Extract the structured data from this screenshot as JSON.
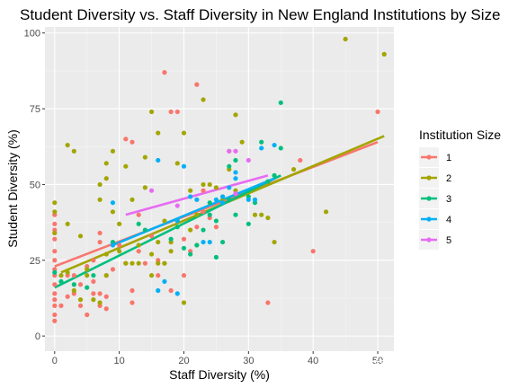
{
  "chart_data": {
    "type": "scatter",
    "title": "Student Diversity vs. Staff Diversity in New England Institutions by Size",
    "xlabel": "Staff Diversity (%)",
    "ylabel": "Student Diversity (%)",
    "xlim": [
      -1.5,
      52.5
    ],
    "ylim": [
      -5,
      102
    ],
    "x_ticks": [
      0,
      10,
      20,
      30,
      40,
      50
    ],
    "y_ticks": [
      0,
      25,
      50,
      75,
      100
    ],
    "grid": true,
    "legend": {
      "title": "Institution Size",
      "position": "right"
    },
    "series": [
      {
        "name": "1",
        "color": "#F8766D",
        "points": [
          [
            0,
            5
          ],
          [
            0,
            7
          ],
          [
            0,
            10
          ],
          [
            0,
            12
          ],
          [
            0,
            14
          ],
          [
            0,
            17
          ],
          [
            0,
            20
          ],
          [
            0,
            22
          ],
          [
            0,
            25
          ],
          [
            0,
            28
          ],
          [
            0,
            32
          ],
          [
            0,
            34
          ],
          [
            0,
            35
          ],
          [
            0,
            37
          ],
          [
            0,
            40
          ],
          [
            1,
            10
          ],
          [
            2,
            13
          ],
          [
            2,
            20
          ],
          [
            3,
            14
          ],
          [
            3,
            20
          ],
          [
            4,
            10
          ],
          [
            4,
            17
          ],
          [
            5,
            7
          ],
          [
            5,
            23
          ],
          [
            6,
            14
          ],
          [
            6,
            18
          ],
          [
            6,
            25
          ],
          [
            7,
            10
          ],
          [
            7,
            14
          ],
          [
            7,
            31
          ],
          [
            7,
            34
          ],
          [
            8,
            9
          ],
          [
            8,
            13
          ],
          [
            8,
            20
          ],
          [
            9,
            22
          ],
          [
            10,
            30
          ],
          [
            11,
            24
          ],
          [
            11,
            65
          ],
          [
            12,
            11
          ],
          [
            12,
            15
          ],
          [
            12,
            64
          ],
          [
            13,
            28
          ],
          [
            13,
            40
          ],
          [
            14,
            24
          ],
          [
            15,
            33
          ],
          [
            16,
            20
          ],
          [
            16,
            25
          ],
          [
            17,
            24
          ],
          [
            17,
            87
          ],
          [
            18,
            15
          ],
          [
            18,
            31
          ],
          [
            18,
            74
          ],
          [
            19,
            74
          ],
          [
            20,
            20
          ],
          [
            20,
            32
          ],
          [
            21,
            28
          ],
          [
            22,
            36
          ],
          [
            22,
            83
          ],
          [
            23,
            41
          ],
          [
            23,
            48
          ],
          [
            24,
            39
          ],
          [
            25,
            36
          ],
          [
            27,
            61
          ],
          [
            33,
            11
          ],
          [
            38,
            58
          ],
          [
            40,
            28
          ],
          [
            50,
            74
          ]
        ],
        "trend": {
          "x": [
            0,
            50
          ],
          "y": [
            23,
            64
          ]
        }
      },
      {
        "name": "2",
        "color": "#A3A500",
        "points": [
          [
            0,
            34
          ],
          [
            0,
            41
          ],
          [
            0,
            44
          ],
          [
            1,
            20
          ],
          [
            2,
            21
          ],
          [
            2,
            37
          ],
          [
            2,
            63
          ],
          [
            3,
            61
          ],
          [
            3,
            15
          ],
          [
            4,
            12
          ],
          [
            4,
            33
          ],
          [
            5,
            20
          ],
          [
            5,
            22
          ],
          [
            6,
            12
          ],
          [
            7,
            11
          ],
          [
            7,
            45
          ],
          [
            7,
            50
          ],
          [
            8,
            20
          ],
          [
            8,
            27
          ],
          [
            8,
            52
          ],
          [
            8,
            57
          ],
          [
            9,
            41
          ],
          [
            9,
            61
          ],
          [
            10,
            28
          ],
          [
            10,
            37
          ],
          [
            11,
            24
          ],
          [
            11,
            56
          ],
          [
            12,
            24
          ],
          [
            12,
            45
          ],
          [
            13,
            24
          ],
          [
            13,
            30
          ],
          [
            14,
            49
          ],
          [
            14,
            59
          ],
          [
            15,
            27
          ],
          [
            15,
            20
          ],
          [
            15,
            74
          ],
          [
            16,
            24
          ],
          [
            16,
            31
          ],
          [
            16,
            67
          ],
          [
            17,
            24
          ],
          [
            17,
            38
          ],
          [
            18,
            28
          ],
          [
            18,
            31
          ],
          [
            19,
            38
          ],
          [
            19,
            57
          ],
          [
            20,
            11
          ],
          [
            20,
            67
          ],
          [
            21,
            35
          ],
          [
            21,
            48
          ],
          [
            22,
            30
          ],
          [
            22,
            40
          ],
          [
            23,
            50
          ],
          [
            23,
            78
          ],
          [
            24,
            50
          ],
          [
            25,
            49
          ],
          [
            26,
            45
          ],
          [
            27,
            55
          ],
          [
            28,
            48
          ],
          [
            28,
            73
          ],
          [
            29,
            64
          ],
          [
            31,
            40
          ],
          [
            32,
            40
          ],
          [
            33,
            39
          ],
          [
            34,
            31
          ],
          [
            37,
            55
          ],
          [
            42,
            41
          ],
          [
            45,
            98
          ],
          [
            51,
            93
          ]
        ],
        "trend": {
          "x": [
            1,
            51
          ],
          "y": [
            21,
            66
          ]
        }
      },
      {
        "name": "3",
        "color": "#00BF7D",
        "points": [
          [
            0,
            21
          ],
          [
            1,
            18
          ],
          [
            3,
            17
          ],
          [
            5,
            16
          ],
          [
            6,
            20
          ],
          [
            9,
            31
          ],
          [
            13,
            37
          ],
          [
            14,
            35
          ],
          [
            18,
            32
          ],
          [
            19,
            36
          ],
          [
            20,
            29
          ],
          [
            21,
            27
          ],
          [
            22,
            30
          ],
          [
            23,
            35
          ],
          [
            24,
            40
          ],
          [
            24,
            44
          ],
          [
            25,
            26
          ],
          [
            25,
            38
          ],
          [
            26,
            31
          ],
          [
            26,
            46
          ],
          [
            27,
            45
          ],
          [
            27,
            56
          ],
          [
            28,
            40
          ],
          [
            28,
            58
          ],
          [
            30,
            46
          ],
          [
            30,
            37
          ],
          [
            31,
            44
          ],
          [
            32,
            64
          ],
          [
            33,
            51
          ],
          [
            34,
            53
          ],
          [
            35,
            62
          ],
          [
            35,
            77
          ]
        ],
        "trend": {
          "x": [
            0,
            35
          ],
          "y": [
            16,
            53
          ]
        }
      },
      {
        "name": "4",
        "color": "#00B0F6",
        "points": [
          [
            9,
            44
          ],
          [
            9,
            30
          ],
          [
            16,
            58
          ],
          [
            16,
            15
          ],
          [
            17,
            18
          ],
          [
            19,
            38
          ],
          [
            19,
            14
          ],
          [
            20,
            56
          ],
          [
            21,
            46
          ],
          [
            22,
            45
          ],
          [
            23,
            31
          ],
          [
            24,
            31
          ],
          [
            25,
            45
          ],
          [
            26,
            46
          ],
          [
            26,
            44
          ],
          [
            27,
            49
          ],
          [
            28,
            52
          ],
          [
            28,
            54
          ],
          [
            30,
            45
          ],
          [
            31,
            45
          ],
          [
            32,
            62
          ],
          [
            34,
            63
          ]
        ],
        "trend": {
          "x": [
            9,
            34
          ],
          "y": [
            30,
            52
          ]
        }
      },
      {
        "name": "5",
        "color": "#E76BF3",
        "points": [
          [
            15,
            48
          ],
          [
            19,
            43
          ],
          [
            27,
            61
          ],
          [
            28,
            47
          ],
          [
            28,
            61
          ],
          [
            30,
            58
          ]
        ],
        "trend": {
          "x": [
            11,
            33
          ],
          "y": [
            40,
            53
          ]
        }
      }
    ]
  },
  "watermark": "知乎 @黄小伟Yeah"
}
